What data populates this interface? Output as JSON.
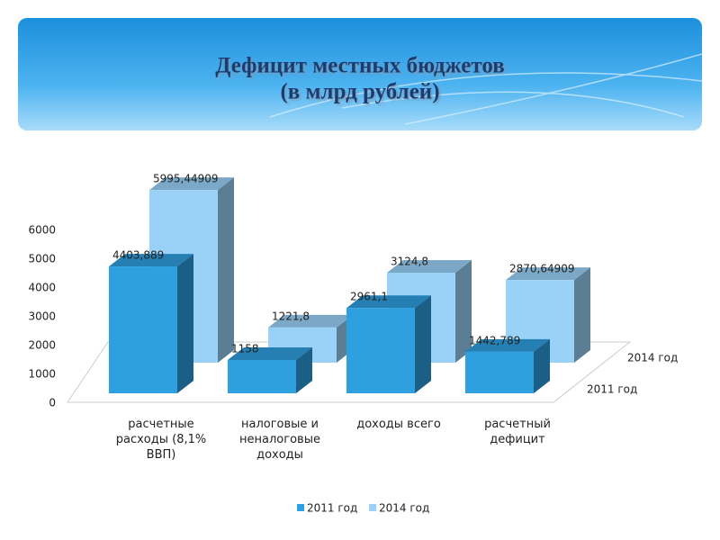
{
  "chart_data": {
    "type": "bar3d",
    "title": "Дефицит местных бюджетов",
    "subtitle": "(в млрд рублей)",
    "categories": [
      "расчетные расходы (8,1% ВВП)",
      "налоговые и неналоговые доходы",
      "доходы всего",
      "расчетный дефицит"
    ],
    "series": [
      {
        "name": "2011 год",
        "color": "#2e9fdf",
        "values": [
          4403.889,
          1158,
          2961.1,
          1442.789
        ],
        "value_labels": [
          "4403,889",
          "1158",
          "2961,1",
          "1442,789"
        ]
      },
      {
        "name": "2014 год",
        "color": "#9ad2f7",
        "values": [
          5995.44909,
          1221.8,
          3124.8,
          2870.64909
        ],
        "value_labels": [
          "5995,44909",
          "1221,8",
          "3124,8",
          "2870,64909"
        ]
      }
    ],
    "ylim": [
      0,
      6000
    ],
    "yticks": [
      0,
      1000,
      2000,
      3000,
      4000,
      5000,
      6000
    ],
    "legend": "bottom"
  }
}
